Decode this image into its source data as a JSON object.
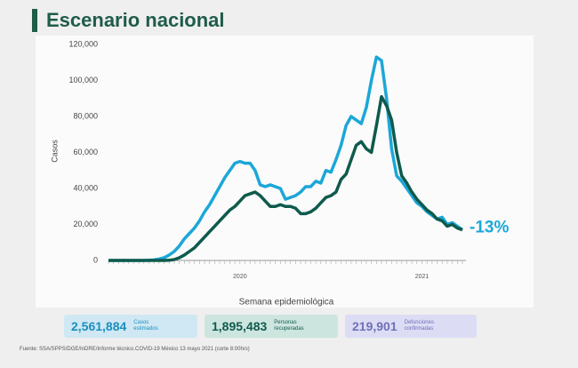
{
  "header": {
    "title": "Escenario nacional"
  },
  "chart_data": {
    "type": "line",
    "y_label": "Casos",
    "x_label": "Semana epidemiológica",
    "annotation": "-13%",
    "annotation_color": "#1ba7d8",
    "categories": [
      null,
      null,
      null,
      null,
      null,
      null,
      null,
      null,
      null,
      null,
      null,
      null,
      null,
      null,
      null,
      null,
      null,
      null,
      null,
      null,
      null,
      null,
      null,
      null,
      null,
      null,
      "2020",
      null,
      null,
      null,
      null,
      null,
      null,
      null,
      null,
      null,
      null,
      null,
      null,
      null,
      null,
      null,
      null,
      null,
      null,
      null,
      null,
      null,
      null,
      null,
      null,
      null,
      null,
      null,
      null,
      null,
      null,
      null,
      null,
      null,
      null,
      null,
      "2021",
      null,
      null,
      null,
      null,
      null,
      null,
      null,
      null
    ],
    "series": [
      {
        "color": "#1ba7d8",
        "values": [
          0,
          0,
          0,
          0,
          0,
          0,
          0,
          0,
          100,
          300,
          800,
          1500,
          3000,
          5000,
          8000,
          12000,
          15000,
          18000,
          22000,
          27000,
          31000,
          36000,
          41000,
          46000,
          50000,
          54000,
          55000,
          54000,
          54000,
          50000,
          42000,
          41000,
          42000,
          41000,
          40000,
          34000,
          35000,
          36000,
          38000,
          41000,
          41000,
          44000,
          43000,
          50000,
          49000,
          56000,
          64000,
          75000,
          80000,
          78000,
          76000,
          85000,
          100000,
          113000,
          111000,
          90000,
          62000,
          47000,
          44000,
          40000,
          36000,
          32000,
          30000,
          27000,
          25000,
          23000,
          24000,
          20000,
          21000,
          19000,
          17000
        ]
      },
      {
        "color": "#0f5a4c",
        "values": [
          0,
          0,
          0,
          0,
          0,
          0,
          0,
          0,
          0,
          0,
          0,
          0,
          100,
          500,
          1500,
          3000,
          5000,
          7000,
          10000,
          13000,
          16000,
          19000,
          22000,
          25000,
          28000,
          30000,
          33000,
          36000,
          37000,
          38000,
          36000,
          33000,
          30000,
          30000,
          31000,
          30000,
          30000,
          29000,
          26000,
          26000,
          27000,
          29000,
          32000,
          35000,
          36000,
          38000,
          45000,
          48000,
          56000,
          64000,
          66000,
          62000,
          60000,
          75000,
          91000,
          86000,
          78000,
          60000,
          47000,
          43000,
          38000,
          34000,
          31000,
          28000,
          26000,
          23000,
          22000,
          19000,
          20000,
          18000,
          17000
        ]
      }
    ],
    "ylim": [
      0,
      120000
    ],
    "yticks": [
      0,
      {
        "value": 20000,
        "label": "20,000"
      },
      {
        "value": 40000,
        "label": "40,000"
      },
      {
        "value": 60000,
        "label": "60,000"
      },
      {
        "value": 80000,
        "label": "80,000"
      },
      {
        "value": 100000,
        "label": "100,000"
      },
      {
        "value": 120000,
        "label": "120,000"
      }
    ],
    "grid": false
  },
  "stats": [
    {
      "value": "2,561,884",
      "label": "Casos estimados"
    },
    {
      "value": "1,895,483",
      "label": "Personas recuperadas"
    },
    {
      "value": "219,901",
      "label": "Defunciones confirmadas"
    }
  ],
  "source": "Fuente: SSA/SPPS/DGE/InDRE/Informe técnico.COVID-19 México 13 mayo 2021 (corte 8:00hrs)"
}
